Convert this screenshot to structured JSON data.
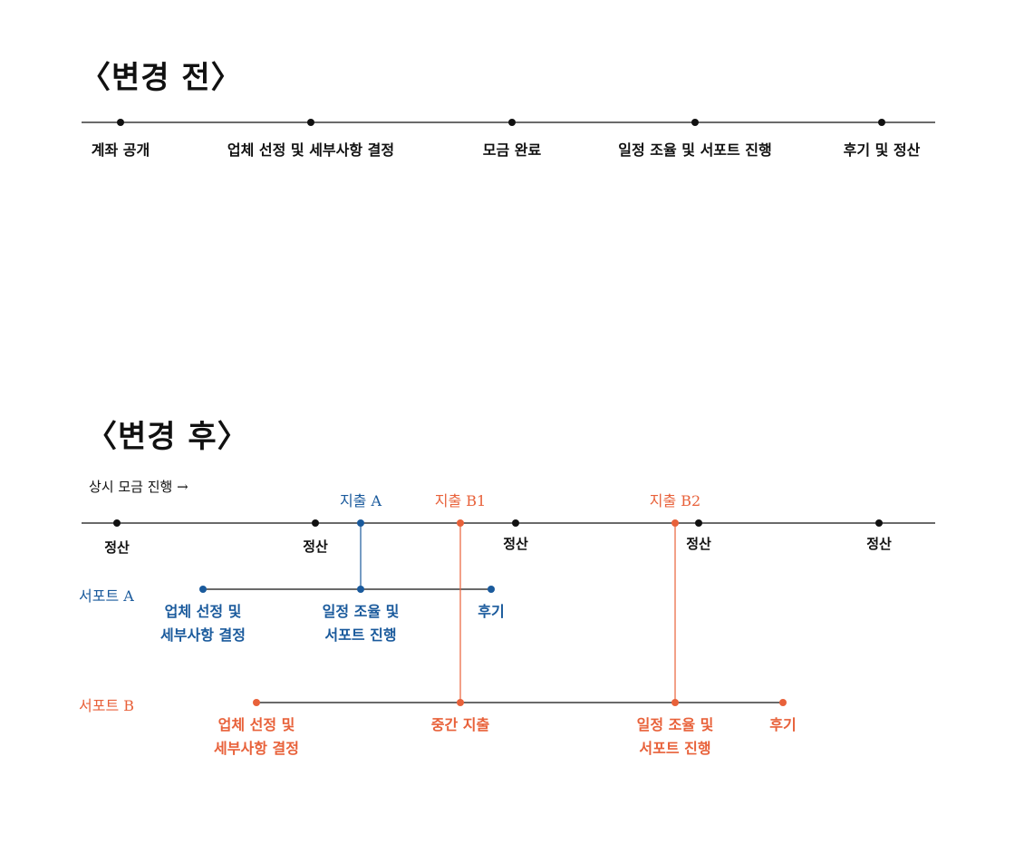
{
  "before": {
    "title": "〈변경 전〉",
    "steps": [
      "계좌 공개",
      "업체 선정 및 세부사항 결정",
      "모금 완료",
      "일정 조율 및 서포트 진행",
      "후기 및 정산"
    ]
  },
  "after": {
    "title": "〈변경 후〉",
    "always_label": "상시 모금 진행 →",
    "settlements": [
      "정산",
      "정산",
      "정산",
      "정산",
      "정산"
    ],
    "expenses": {
      "a": "지출 A",
      "b1": "지출 B1",
      "b2": "지출 B2"
    },
    "support_a": {
      "label": "서포트 A",
      "steps": [
        [
          "업체 선정 및",
          "세부사항 결정"
        ],
        [
          "일정 조율 및",
          "서포트 진행"
        ],
        [
          "후기"
        ]
      ]
    },
    "support_b": {
      "label": "서포트 B",
      "steps": [
        [
          "업체 선정 및",
          "세부사항 결정"
        ],
        [
          "중간 지출"
        ],
        [
          "일정 조율 및",
          "서포트 진행"
        ],
        [
          "후기"
        ]
      ]
    }
  },
  "colors": {
    "line": "#111111",
    "support_a": "#1a5a9c",
    "support_b": "#e8613a"
  }
}
